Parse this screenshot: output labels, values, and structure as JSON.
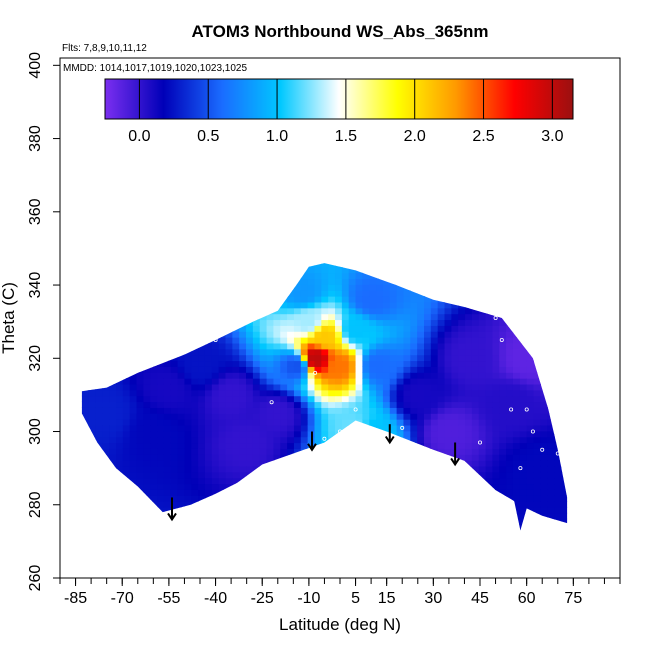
{
  "chart_data": {
    "type": "heatmap",
    "title": "ATOM3 Northbound WS_Abs_365nm",
    "flights_label": "Flts: 7,8,9,10,11,12",
    "dates_label": "MMDD: 1014,1017,1019,1020,1023,1025",
    "xlabel": "Latitude (deg N)",
    "ylabel": "Theta (C)",
    "xlim": [
      -90,
      90
    ],
    "ylim": [
      260,
      402
    ],
    "x_ticks": [
      -85,
      -70,
      -55,
      -40,
      -25,
      -10,
      5,
      15,
      30,
      45,
      60,
      75
    ],
    "y_ticks": [
      260,
      280,
      300,
      320,
      340,
      360,
      380,
      400
    ],
    "colorbar": {
      "range": [
        -0.25,
        3.15
      ],
      "ticks": [
        "0.0",
        "0.5",
        "1.0",
        "1.5",
        "2.0",
        "2.5",
        "3.0"
      ],
      "tick_values": [
        0,
        0.5,
        1.0,
        1.5,
        2.0,
        2.5,
        3.0
      ],
      "colors": [
        "#7b2ff0",
        "#0000b8",
        "#1a6cff",
        "#00c8ff",
        "#ffffff",
        "#ffff00",
        "#ff9900",
        "#ff0000",
        "#9b1010"
      ]
    },
    "coverage_outline": [
      [
        -83,
        311
      ],
      [
        -75,
        312
      ],
      [
        -65,
        316
      ],
      [
        -50,
        321
      ],
      [
        -40,
        325
      ],
      [
        -28,
        330
      ],
      [
        -20,
        333
      ],
      [
        -14,
        340
      ],
      [
        -10,
        345
      ],
      [
        -5,
        346
      ],
      [
        5,
        344
      ],
      [
        18,
        340
      ],
      [
        30,
        336
      ],
      [
        40,
        334
      ],
      [
        52,
        331
      ],
      [
        62,
        320
      ],
      [
        67,
        306
      ],
      [
        70,
        295
      ],
      [
        73,
        282
      ],
      [
        73,
        275
      ],
      [
        65,
        277
      ],
      [
        60,
        279
      ],
      [
        58,
        273
      ],
      [
        56,
        281
      ],
      [
        50,
        284
      ],
      [
        40,
        292
      ],
      [
        30,
        295
      ],
      [
        15,
        300
      ],
      [
        5,
        303
      ],
      [
        -5,
        297
      ],
      [
        -15,
        294
      ],
      [
        -25,
        291
      ],
      [
        -33,
        286
      ],
      [
        -40,
        283
      ],
      [
        -48,
        280
      ],
      [
        -57,
        278
      ],
      [
        -65,
        285
      ],
      [
        -72,
        290
      ],
      [
        -78,
        297
      ],
      [
        -83,
        305
      ]
    ],
    "field": [
      {
        "lat": -75,
        "theta": 305,
        "value": 0.3
      },
      {
        "lat": -60,
        "theta": 300,
        "value": 0.2
      },
      {
        "lat": -55,
        "theta": 312,
        "value": 0.1
      },
      {
        "lat": -45,
        "theta": 318,
        "value": 0.25
      },
      {
        "lat": -35,
        "theta": 310,
        "value": 0.0
      },
      {
        "lat": -30,
        "theta": 297,
        "value": 0.0
      },
      {
        "lat": -20,
        "theta": 305,
        "value": 0.0
      },
      {
        "lat": -14,
        "theta": 318,
        "value": 0.5
      },
      {
        "lat": -8,
        "theta": 320,
        "value": 3.0
      },
      {
        "lat": -5,
        "theta": 326,
        "value": 2.1
      },
      {
        "lat": 0,
        "theta": 318,
        "value": 2.4
      },
      {
        "lat": -10,
        "theta": 330,
        "value": 1.3
      },
      {
        "lat": 5,
        "theta": 328,
        "value": 1.0
      },
      {
        "lat": 12,
        "theta": 318,
        "value": 0.6
      },
      {
        "lat": -12,
        "theta": 338,
        "value": 0.8
      },
      {
        "lat": 10,
        "theta": 336,
        "value": 0.6
      },
      {
        "lat": 5,
        "theta": 301,
        "value": 1.2
      },
      {
        "lat": 10,
        "theta": 300,
        "value": 1.0
      },
      {
        "lat": 25,
        "theta": 310,
        "value": 0.1
      },
      {
        "lat": 35,
        "theta": 300,
        "value": -0.1
      },
      {
        "lat": 42,
        "theta": 320,
        "value": 0.0
      },
      {
        "lat": 55,
        "theta": 308,
        "value": 0.05
      },
      {
        "lat": 65,
        "theta": 290,
        "value": 0.2
      },
      {
        "lat": 60,
        "theta": 320,
        "value": -0.15
      }
    ],
    "sample_points": [
      [
        -62,
        320
      ],
      [
        -45,
        324
      ],
      [
        -40,
        325
      ],
      [
        -30,
        330
      ],
      [
        -22,
        308
      ],
      [
        -8,
        316
      ],
      [
        5,
        306
      ],
      [
        -5,
        298
      ],
      [
        0,
        300
      ],
      [
        10,
        297
      ],
      [
        20,
        301
      ],
      [
        30,
        293
      ],
      [
        35,
        292
      ],
      [
        45,
        297
      ],
      [
        55,
        306
      ],
      [
        60,
        306
      ],
      [
        58,
        290
      ],
      [
        65,
        295
      ],
      [
        43,
        337
      ],
      [
        50,
        331
      ],
      [
        52,
        325
      ],
      [
        62,
        300
      ],
      [
        70,
        294
      ]
    ],
    "arrows": [
      {
        "lat": -54,
        "theta_top": 282,
        "theta_bottom": 276
      },
      {
        "lat": -9,
        "theta_top": 300,
        "theta_bottom": 295
      },
      {
        "lat": 16,
        "theta_top": 302,
        "theta_bottom": 297
      },
      {
        "lat": 37,
        "theta_top": 297,
        "theta_bottom": 291
      }
    ]
  }
}
